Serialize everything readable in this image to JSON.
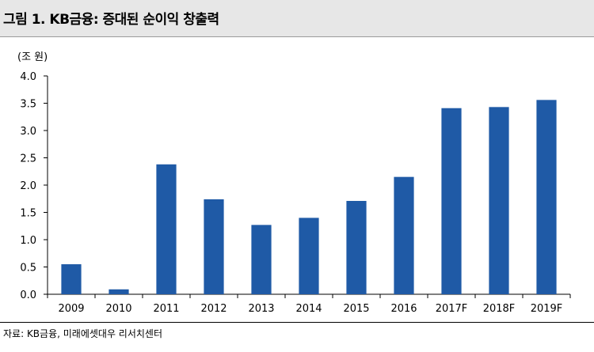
{
  "header": {
    "title": "그림 1. KB금융: 증대된 순이익 창출력"
  },
  "footer": {
    "source": "자료: KB금융, 미래에셋대우 리서치센터"
  },
  "colors": {
    "bar": "#1f5aa6",
    "title_bg": "#e7e7e7"
  },
  "chart_data": {
    "type": "bar",
    "title": "",
    "unit_label": "(조 원)",
    "xlabel": "",
    "ylabel": "",
    "categories": [
      "2009",
      "2010",
      "2011",
      "2012",
      "2013",
      "2014",
      "2015",
      "2016",
      "2017F",
      "2018F",
      "2019F"
    ],
    "values": [
      0.55,
      0.09,
      2.38,
      1.74,
      1.27,
      1.4,
      1.71,
      2.15,
      3.41,
      3.43,
      3.56
    ],
    "ylim": [
      0,
      4.0
    ],
    "yticks": [
      "0.0",
      "0.5",
      "1.0",
      "1.5",
      "2.0",
      "2.5",
      "3.0",
      "3.5",
      "4.0"
    ],
    "grid": false,
    "legend": "none"
  }
}
